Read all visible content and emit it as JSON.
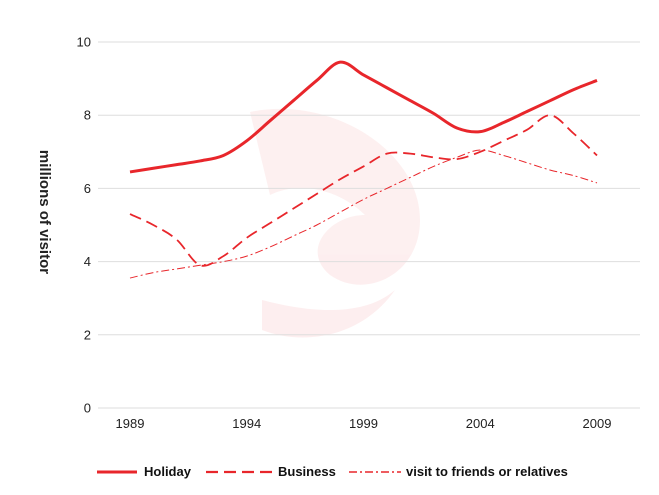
{
  "chart_data": {
    "type": "line",
    "title": "",
    "xlabel": "",
    "ylabel": "millions of visitor",
    "x": [
      1989,
      1990,
      1991,
      1992,
      1993,
      1994,
      1995,
      1996,
      1997,
      1998,
      1999,
      2000,
      2001,
      2002,
      2003,
      2004,
      2005,
      2006,
      2007,
      2008,
      2009
    ],
    "xticks": [
      "1989",
      "1994",
      "1999",
      "2004",
      "2009"
    ],
    "yticks": [
      "0",
      "2",
      "4",
      "6",
      "8",
      "10"
    ],
    "xlim": [
      1989,
      2009
    ],
    "ylim": [
      0,
      10
    ],
    "grid": "horizontal",
    "legend_position": "bottom",
    "series": [
      {
        "name": "Holiday",
        "style": "solid",
        "color": "#e8262b",
        "values": [
          6.45,
          6.55,
          6.65,
          6.75,
          6.9,
          7.3,
          7.85,
          8.4,
          8.95,
          9.45,
          9.1,
          8.75,
          8.4,
          8.05,
          7.65,
          7.55,
          7.8,
          8.1,
          8.4,
          8.7,
          8.95
        ]
      },
      {
        "name": "Business",
        "style": "dashed",
        "color": "#e8262b",
        "values": [
          5.3,
          5.0,
          4.6,
          3.9,
          4.15,
          4.65,
          5.05,
          5.45,
          5.85,
          6.25,
          6.6,
          6.95,
          6.95,
          6.85,
          6.8,
          7.0,
          7.3,
          7.6,
          8.0,
          7.5,
          6.9
        ]
      },
      {
        "name": "visit to friends or relatives",
        "style": "dashdot",
        "color": "#e8262b",
        "values": [
          3.55,
          3.7,
          3.8,
          3.9,
          4.0,
          4.15,
          4.4,
          4.7,
          5.0,
          5.35,
          5.7,
          6.0,
          6.3,
          6.6,
          6.85,
          7.05,
          6.9,
          6.7,
          6.5,
          6.35,
          6.15
        ]
      }
    ]
  }
}
